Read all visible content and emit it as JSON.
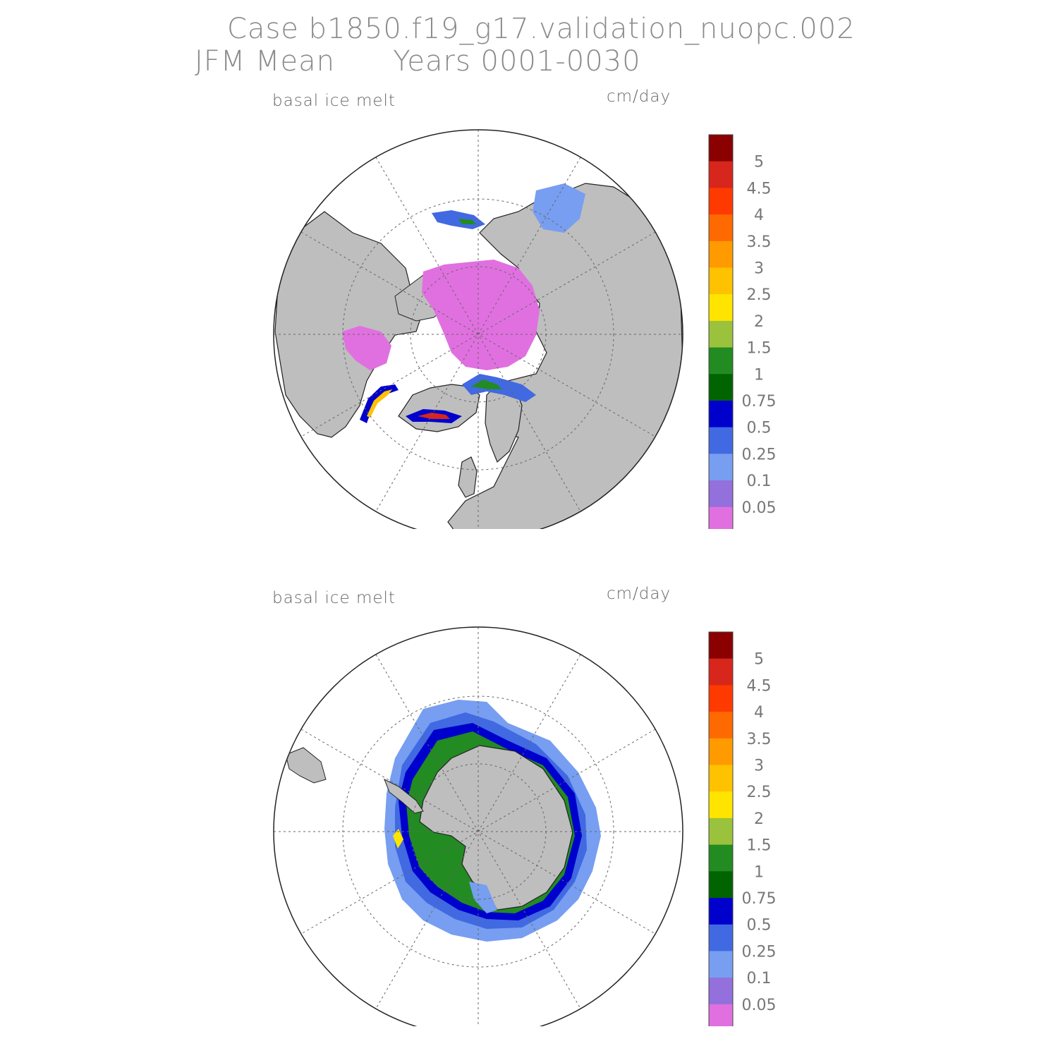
{
  "title": {
    "line1": "Case b1850.f19_g17.validation_nuopc.002",
    "line2": "JFM Mean      Years 0001-0030"
  },
  "panels": [
    {
      "name": "north",
      "variable": "basal ice melt",
      "units": "cm/day"
    },
    {
      "name": "south",
      "variable": "basal ice melt",
      "units": "cm/day"
    }
  ],
  "colorbar": {
    "labels": [
      "5",
      "4.5",
      "4",
      "3.5",
      "3",
      "2.5",
      "2",
      "1.5",
      "1",
      "0.75",
      "0.5",
      "0.25",
      "0.1",
      "0.05"
    ],
    "colors": [
      "#8b0000",
      "#d7261c",
      "#ff3a00",
      "#ff6a00",
      "#ff9a00",
      "#ffc200",
      "#ffe400",
      "#9ac23c",
      "#228b22",
      "#006400",
      "#0000cd",
      "#4169e1",
      "#779ef0",
      "#9370db",
      "#e070e0"
    ]
  },
  "map_colors": {
    "land": "#bebebe",
    "ocean": "#ffffff",
    "grid": "#666666"
  }
}
